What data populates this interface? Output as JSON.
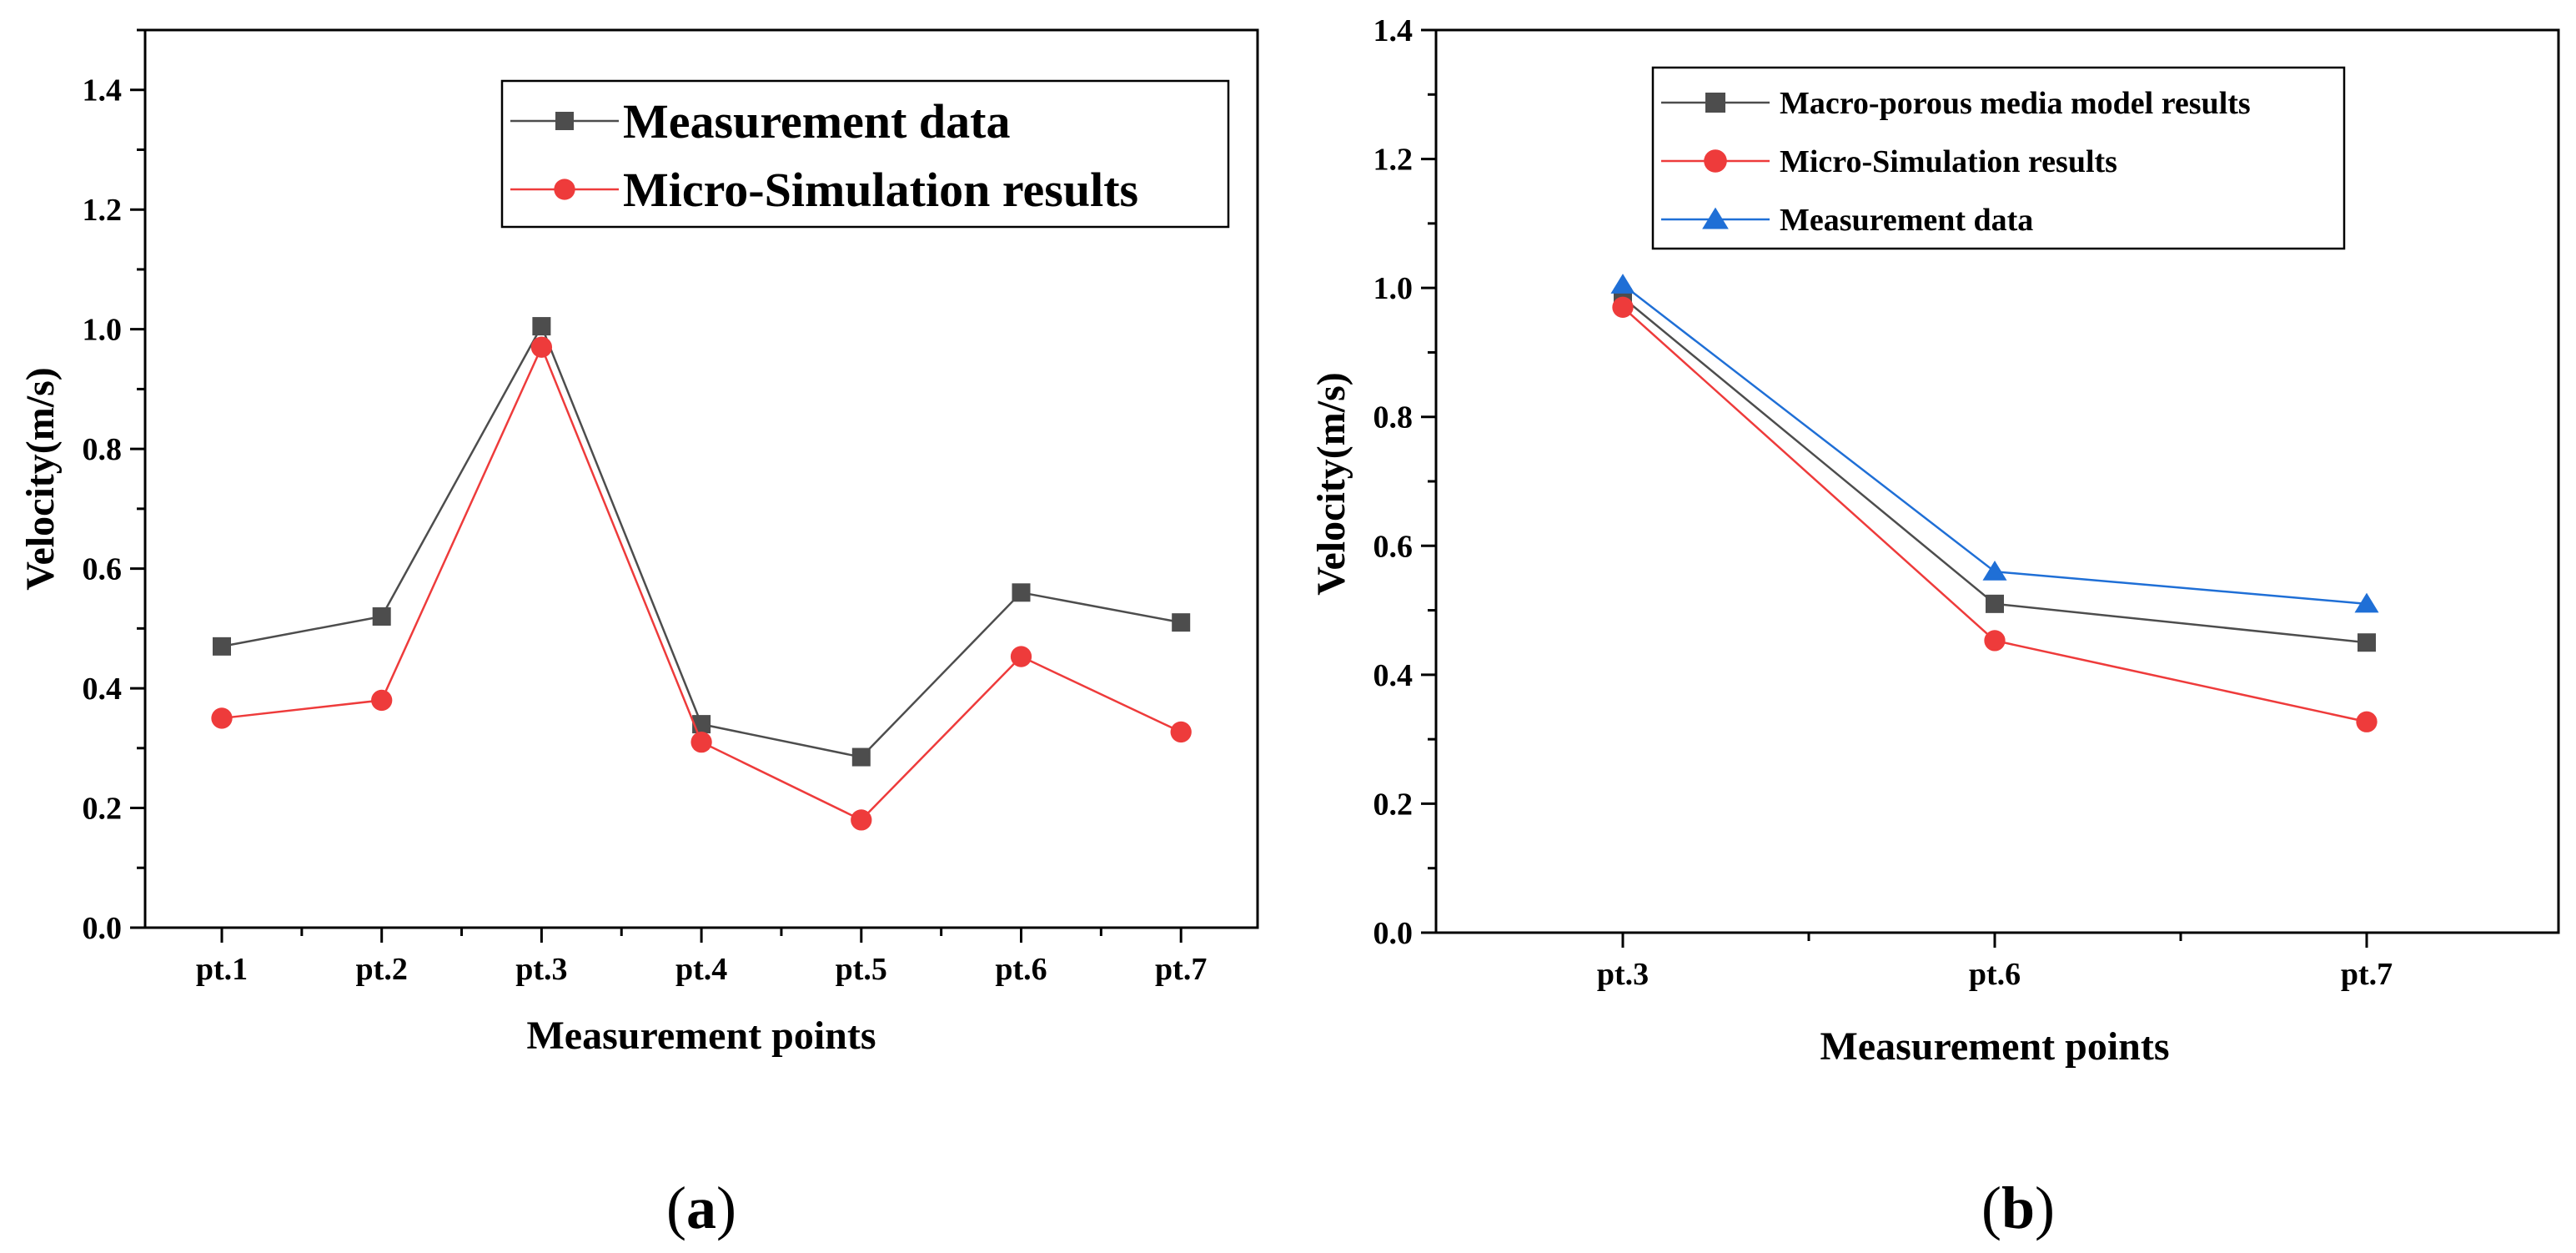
{
  "chart_data": [
    {
      "type": "line",
      "panel_label": "a",
      "xlabel": "Measurement points",
      "ylabel": "Velocity(m/s)",
      "ylim": [
        0.0,
        1.5
      ],
      "yticks": [
        "0.0",
        "0.2",
        "0.4",
        "0.6",
        "0.8",
        "1.0",
        "1.2",
        "1.4"
      ],
      "categories": [
        "pt.1",
        "pt.2",
        "pt.3",
        "pt.4",
        "pt.5",
        "pt.6",
        "pt.7"
      ],
      "legend_position": "top-right",
      "series": [
        {
          "name": "Measurement data",
          "marker": "square",
          "color": "#4d4d4d",
          "values": [
            0.47,
            0.52,
            1.005,
            0.34,
            0.285,
            0.56,
            0.51
          ]
        },
        {
          "name": "Micro-Simulation results",
          "marker": "circle",
          "color": "#ee3b3b",
          "values": [
            0.35,
            0.38,
            0.97,
            0.31,
            0.18,
            0.453,
            0.327
          ]
        }
      ]
    },
    {
      "type": "line",
      "panel_label": "b",
      "xlabel": "Measurement points",
      "ylabel": "Velocity(m/s)",
      "ylim": [
        0.0,
        1.4
      ],
      "yticks": [
        "0.0",
        "0.2",
        "0.4",
        "0.6",
        "0.8",
        "1.0",
        "1.2",
        "1.4"
      ],
      "categories": [
        "pt.3",
        "pt.6",
        "pt.7"
      ],
      "legend_position": "top-right",
      "series": [
        {
          "name": "Macro-porous media model results",
          "marker": "square",
          "color": "#4d4d4d",
          "values": [
            0.985,
            0.51,
            0.45
          ]
        },
        {
          "name": "Micro-Simulation results",
          "marker": "circle",
          "color": "#ee3b3b",
          "values": [
            0.97,
            0.453,
            0.327
          ]
        },
        {
          "name": "Measurement data",
          "marker": "triangle",
          "color": "#1f6fd6",
          "values": [
            1.005,
            0.56,
            0.51
          ]
        }
      ]
    }
  ]
}
